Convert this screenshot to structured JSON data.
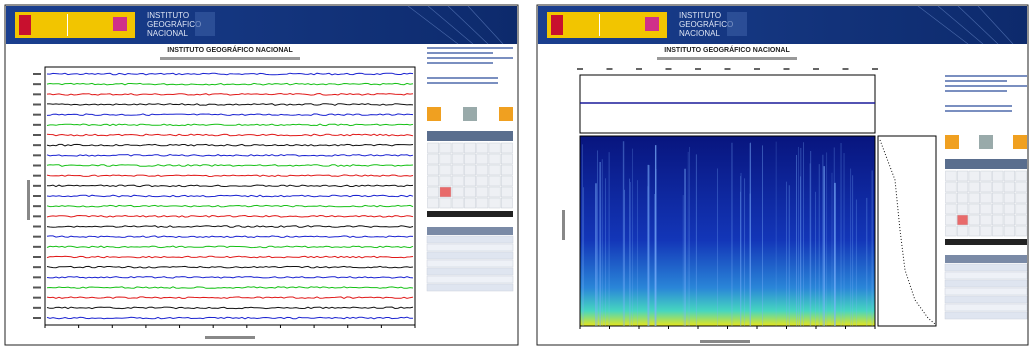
{
  "pages": [
    {
      "header": {
        "lines": [
          "INSTITUTO",
          "GEOGRÁFICO",
          "NACIONAL"
        ]
      },
      "title": "INSTITUTO GEOGRÁFICO NACIONAL"
    },
    {
      "header": {
        "lines": [
          "INSTITUTO",
          "GEOGRÁFICO",
          "NACIONAL"
        ]
      },
      "title": "INSTITUTO GEOGRÁFICO NACIONAL"
    }
  ]
}
